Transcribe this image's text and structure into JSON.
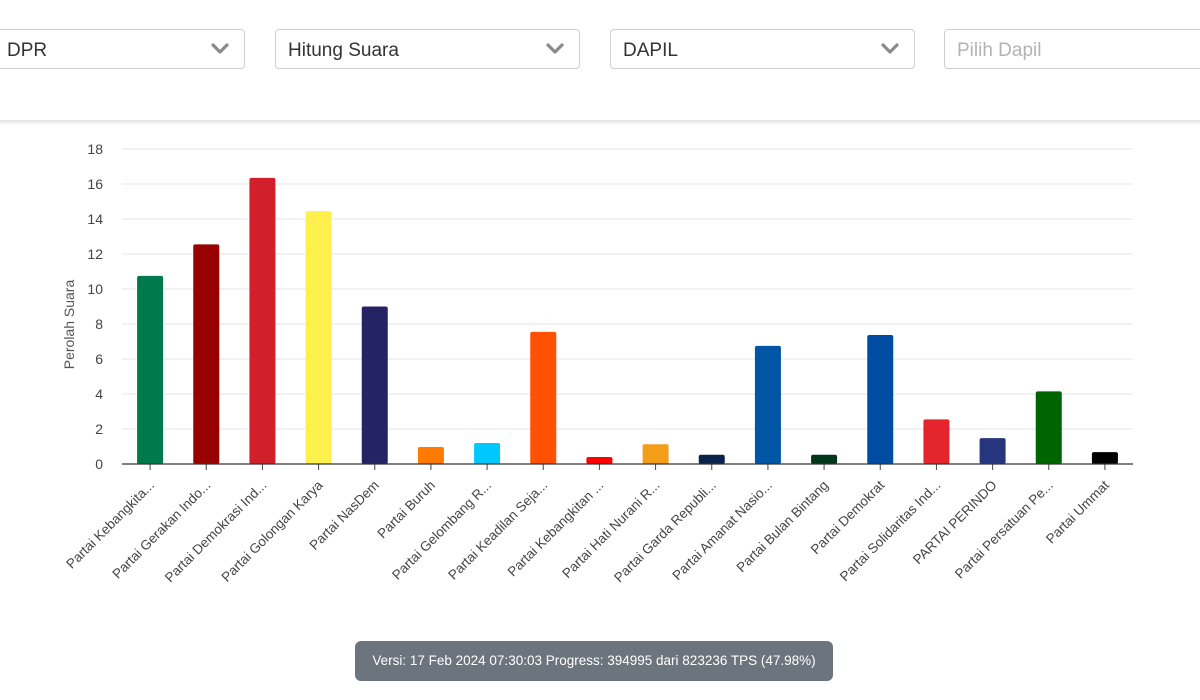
{
  "filters": {
    "chamber": {
      "value": "DPR",
      "icon": "chevron-down-icon"
    },
    "mode": {
      "value": "Hitung Suara",
      "icon": "chevron-down-icon"
    },
    "region_type": {
      "value": "DAPIL",
      "icon": "chevron-down-icon"
    },
    "region": {
      "value": "",
      "placeholder": "Pilih Dapil"
    }
  },
  "chart_data": {
    "type": "bar",
    "ylabel": "Perolah Suara",
    "xlabel": "",
    "ylim": [
      0,
      18
    ],
    "yticks": [
      0,
      2,
      4,
      6,
      8,
      10,
      12,
      14,
      16,
      18
    ],
    "grid": true,
    "categories": [
      "Partai Kebangkita...",
      "Partai Gerakan Indo...",
      "Partai Demokrasi Ind...",
      "Partai Golongan Karya",
      "Partai NasDem",
      "Partai Buruh",
      "Partai Gelombang R...",
      "Partai Keadilan Seja...",
      "Partai Kebangkitan ...",
      "Partai Hati Nurani R...",
      "Partai Garda Republi...",
      "Partai Amanat Nasio...",
      "Partai Bulan Bintang",
      "Partai Demokrat",
      "Partai Solidaritas Ind...",
      "PARTAI PERINDO",
      "Partai Persatuan Pe...",
      "Partai Ummat"
    ],
    "values": [
      10.75,
      12.55,
      16.35,
      14.45,
      9.0,
      0.97,
      1.2,
      7.55,
      0.4,
      1.13,
      0.53,
      6.75,
      0.53,
      7.37,
      2.55,
      1.48,
      4.15,
      0.68
    ],
    "colors": [
      "#007A4D",
      "#990000",
      "#D2202A",
      "#FFF04D",
      "#242364",
      "#FF7A00",
      "#00C8FF",
      "#FF5100",
      "#FF0000",
      "#F29E18",
      "#0B234A",
      "#0055A4",
      "#00361A",
      "#004CA3",
      "#E4252D",
      "#26357E",
      "#006500",
      "#000000"
    ]
  },
  "footer": {
    "status_text": "Versi: 17 Feb 2024 07:30:03 Progress: 394995 dari 823236 TPS (47.98%)"
  }
}
